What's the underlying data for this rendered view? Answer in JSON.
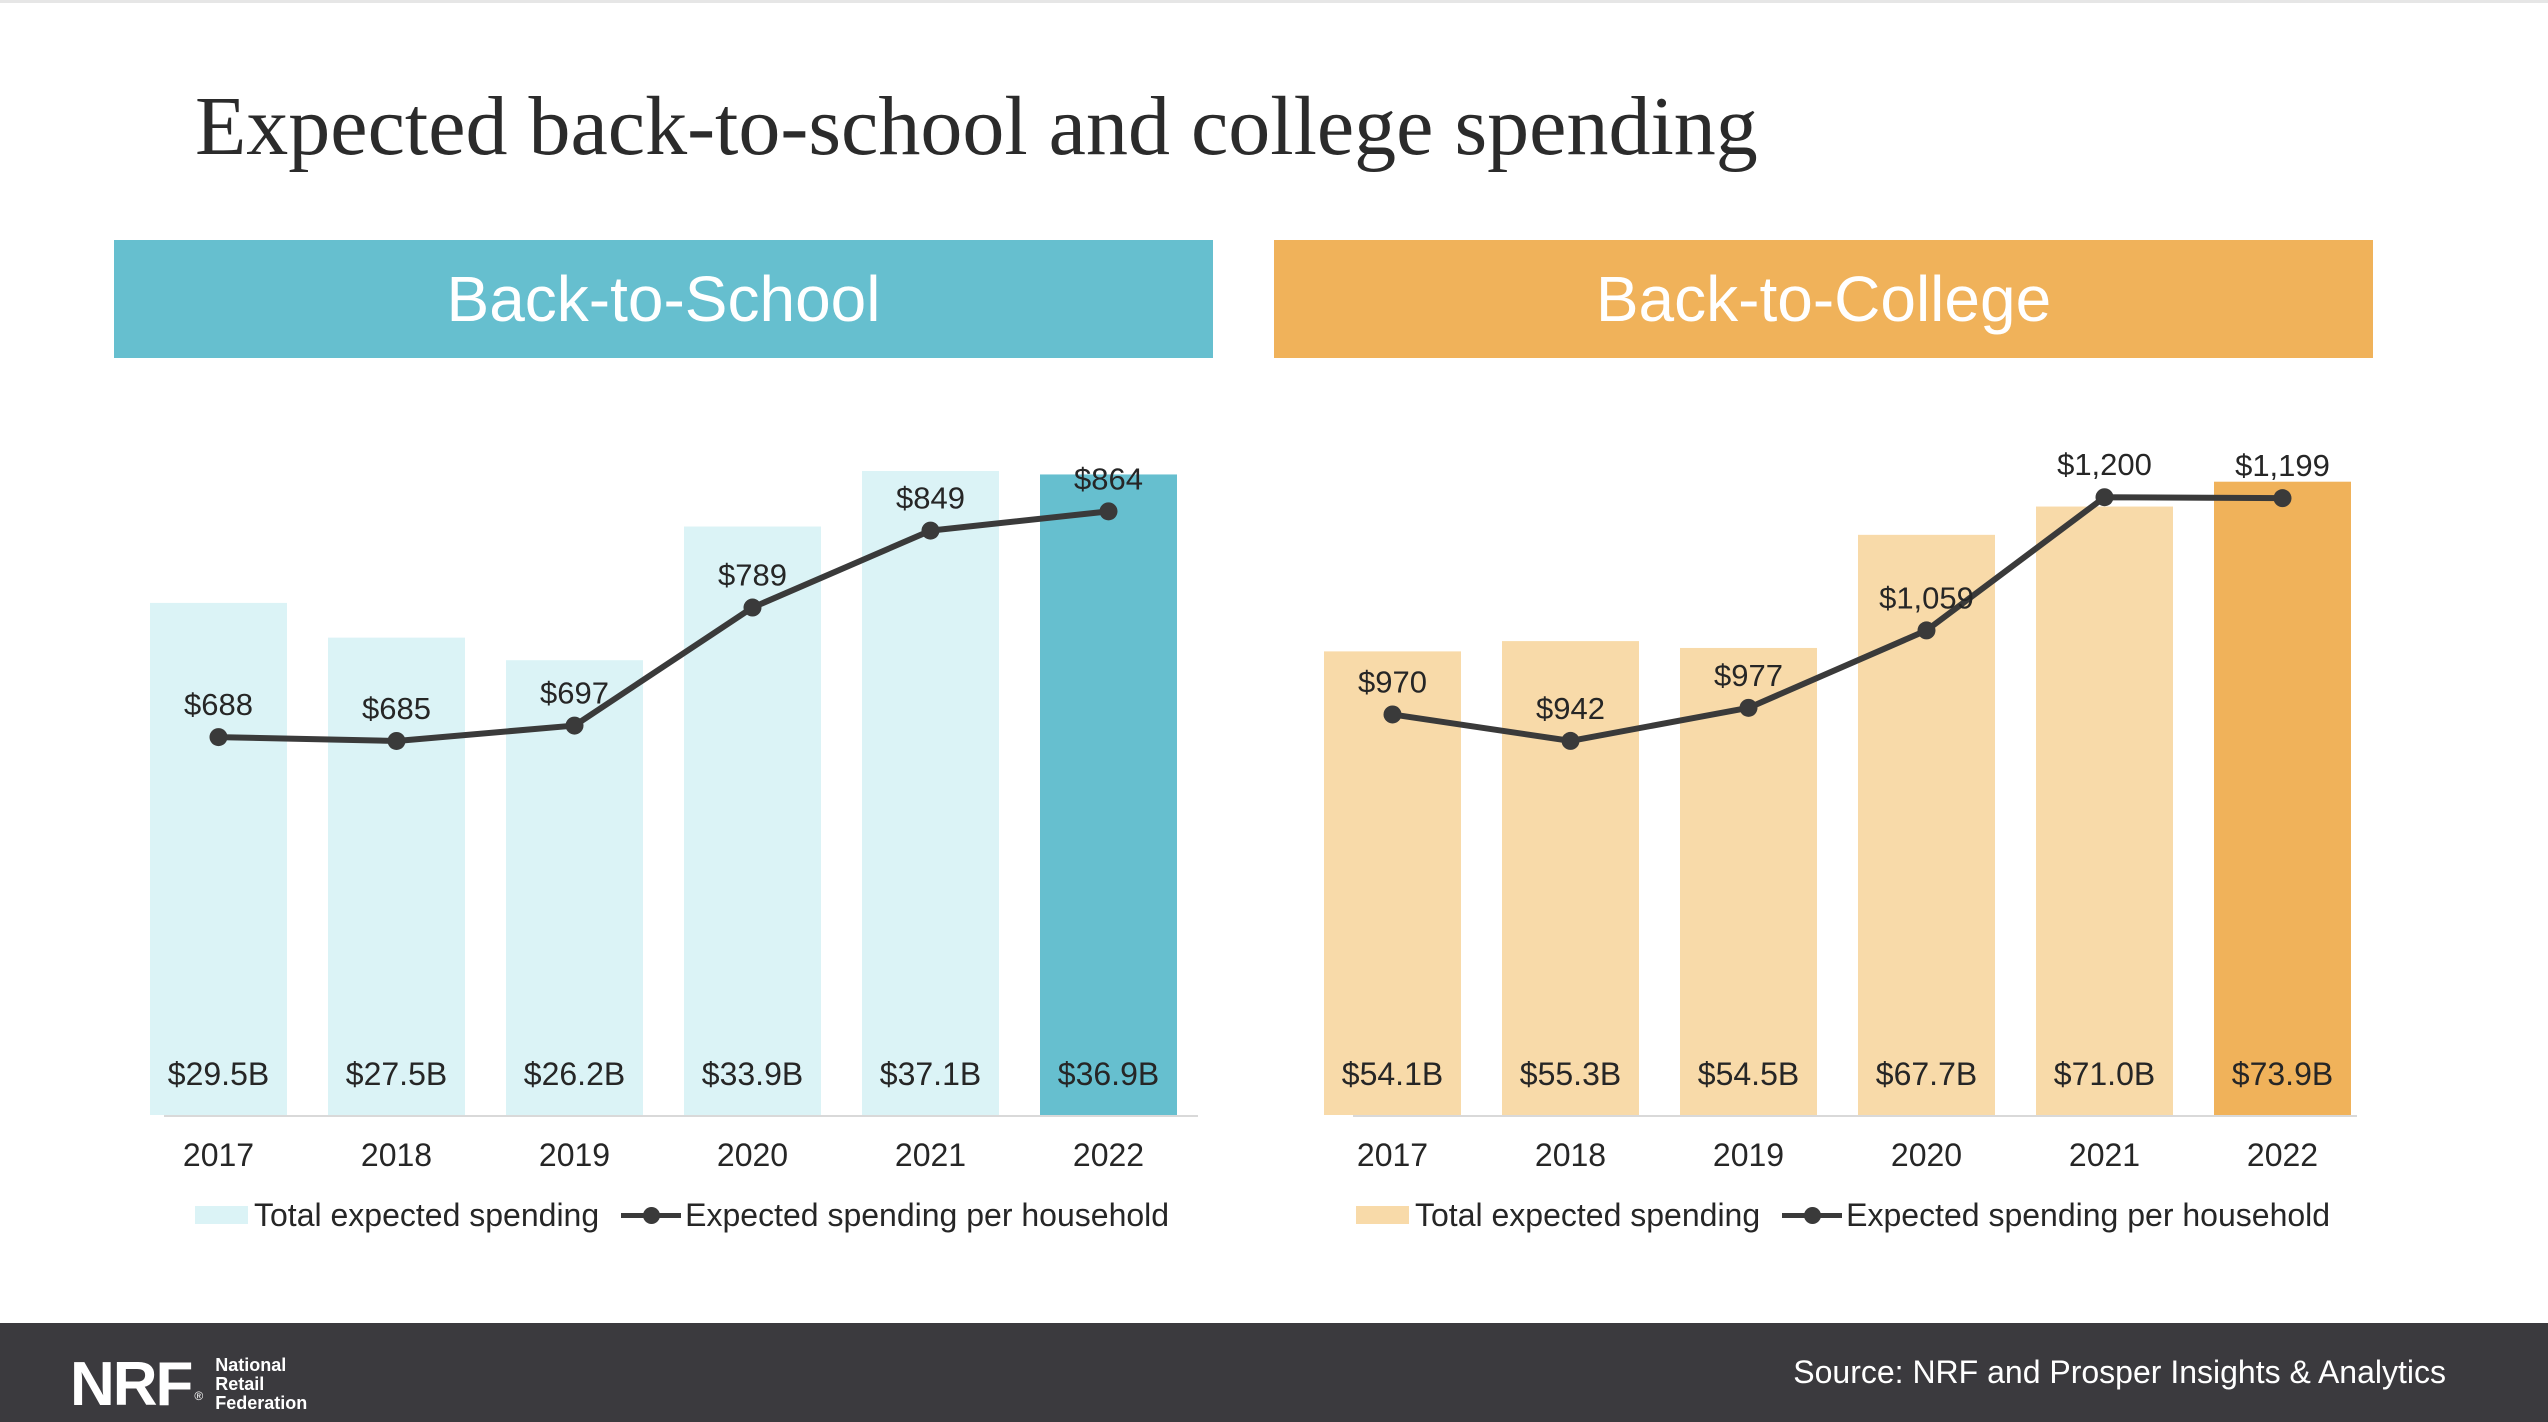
{
  "title": "Expected back-to-school and college spending",
  "source": "Source: NRF and Prosper Insights & Analytics",
  "logo": {
    "mark": "NRF",
    "reg": "®",
    "line1": "National",
    "line2": "Retail",
    "line3": "Federation"
  },
  "colors": {
    "school_accent": "#66bfcf",
    "school_light": "#dbf3f6",
    "college_accent": "#f0b25a",
    "college_light": "#f8daa9",
    "line": "#3a3a3a",
    "footer": "#3b3a3e"
  },
  "panels": [
    {
      "header": "Back-to-School",
      "legend_bar": "Total expected spending",
      "legend_line": "Expected spending per household"
    },
    {
      "header": "Back-to-College",
      "legend_bar": "Total expected spending",
      "legend_line": "Expected spending per household"
    }
  ],
  "chart_data": [
    {
      "type": "bar",
      "title": "Back-to-School",
      "categories": [
        "2017",
        "2018",
        "2019",
        "2020",
        "2021",
        "2022"
      ],
      "series": [
        {
          "name": "Total expected spending",
          "kind": "bar",
          "values": [
            29.5,
            27.5,
            26.2,
            33.9,
            37.1,
            36.9
          ],
          "labels": [
            "$29.5B",
            "$27.5B",
            "$26.2B",
            "$33.9B",
            "$37.1B",
            "$36.9B"
          ]
        },
        {
          "name": "Expected spending per household",
          "kind": "line",
          "values": [
            688,
            685,
            697,
            789,
            849,
            864
          ],
          "labels": [
            "$688",
            "$685",
            "$697",
            "$789",
            "$849",
            "$864"
          ]
        }
      ],
      "highlight_index": 5,
      "legend_position": "bottom",
      "grid": false
    },
    {
      "type": "bar",
      "title": "Back-to-College",
      "categories": [
        "2017",
        "2018",
        "2019",
        "2020",
        "2021",
        "2022"
      ],
      "series": [
        {
          "name": "Total expected spending",
          "kind": "bar",
          "values": [
            54.1,
            55.3,
            54.5,
            67.7,
            71.0,
            73.9
          ],
          "labels": [
            "$54.1B",
            "$55.3B",
            "$54.5B",
            "$67.7B",
            "$71.0B",
            "$73.9B"
          ]
        },
        {
          "name": "Expected spending per household",
          "kind": "line",
          "values": [
            970,
            942,
            977,
            1059,
            1200,
            1199
          ],
          "labels": [
            "$970",
            "$942",
            "$977",
            "$1,059",
            "$1,200",
            "$1,199"
          ]
        }
      ],
      "highlight_index": 5,
      "legend_position": "bottom",
      "grid": false
    }
  ]
}
